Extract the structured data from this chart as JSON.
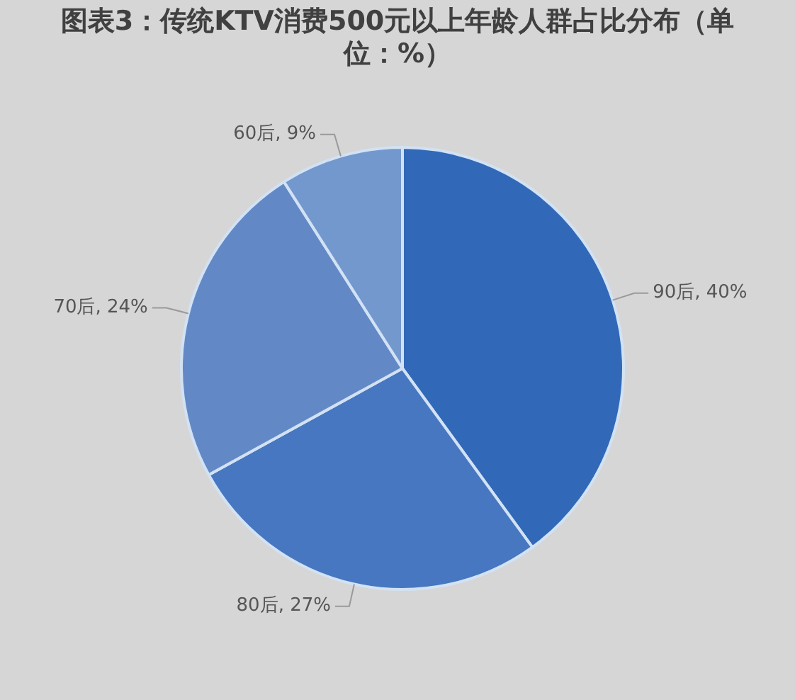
{
  "chart_data": {
    "type": "pie",
    "title": "图表3：传统KTV消费500元以上年龄人群占比分布（单位：%）",
    "categories": [
      "90后",
      "80后",
      "70后",
      "60后"
    ],
    "values": [
      40,
      27,
      24,
      9
    ],
    "colors": [
      "#3169b8",
      "#4677c0",
      "#6289c6",
      "#7398cd"
    ],
    "value_labels": [
      "40%",
      "27%",
      "24%",
      "9%"
    ],
    "legend": false
  }
}
